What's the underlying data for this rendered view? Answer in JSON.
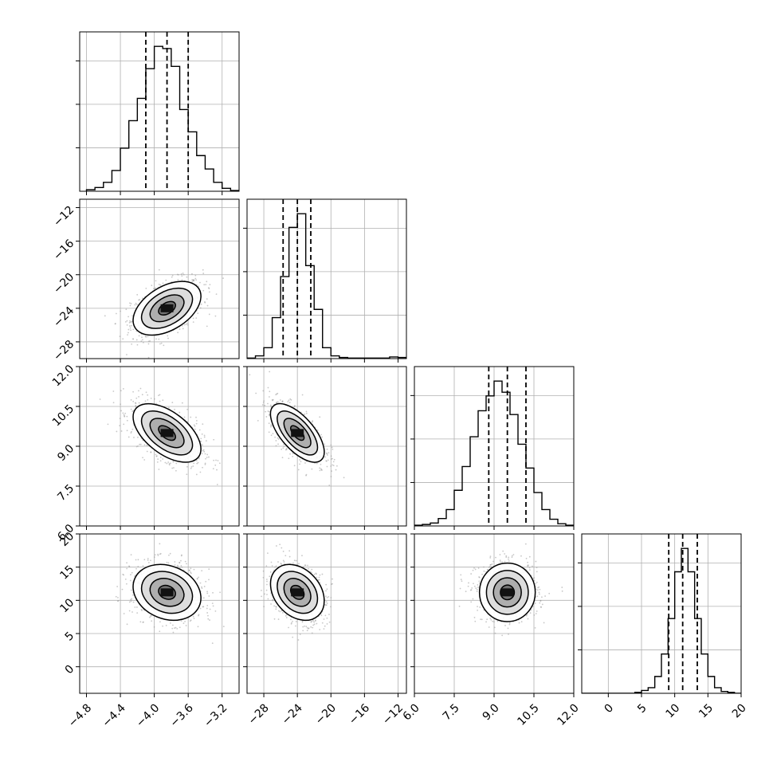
{
  "chart_data": {
    "type": "corner",
    "title": "",
    "parameters": [
      {
        "ticks": [
          -4.8,
          -4.4,
          -4.0,
          -3.6,
          -3.2
        ],
        "tick_labels": [
          "−4.8",
          "−4.4",
          "−4.0",
          "−3.6",
          "−3.2"
        ],
        "range": [
          -4.88,
          -3.0
        ]
      },
      {
        "ticks": [
          -28,
          -24,
          -20,
          -16,
          -12
        ],
        "tick_labels": [
          "−28",
          "−24",
          "−20",
          "−16",
          "−12"
        ],
        "range": [
          -30.0,
          -11.0
        ]
      },
      {
        "ticks": [
          6.0,
          7.5,
          9.0,
          10.5,
          12.0
        ],
        "tick_labels": [
          "6.0",
          "7.5",
          "9.0",
          "10.5",
          "12.0"
        ],
        "range": [
          6.0,
          12.0
        ]
      },
      {
        "ticks": [
          0,
          5,
          10,
          15,
          20
        ],
        "tick_labels": [
          "0",
          "5",
          "10",
          "15",
          "20"
        ],
        "range": [
          -4.0,
          20.0
        ]
      }
    ],
    "quantiles": [
      [
        -4.1,
        -3.85,
        -3.6
      ],
      [
        -25.7,
        -24.0,
        -22.4
      ],
      [
        8.8,
        9.5,
        10.2
      ],
      [
        9.1,
        11.2,
        13.4
      ]
    ],
    "marginal_histograms": [
      {
        "bin_edges": [
          -4.8,
          -4.7,
          -4.6,
          -4.5,
          -4.4,
          -4.3,
          -4.2,
          -4.1,
          -4.0,
          -3.9,
          -3.8,
          -3.7,
          -3.6,
          -3.5,
          -3.4,
          -3.3,
          -3.2,
          -3.1,
          -3.0
        ],
        "counts": [
          2,
          5,
          12,
          28,
          58,
          95,
          125,
          165,
          195,
          192,
          168,
          110,
          80,
          48,
          30,
          12,
          4,
          1
        ]
      },
      {
        "bin_edges": [
          -30,
          -29,
          -28,
          -27,
          -26,
          -25,
          -24,
          -23,
          -22,
          -21,
          -20,
          -19,
          -18,
          -17,
          -16,
          -15,
          -14,
          -13,
          -12,
          -11
        ],
        "counts": [
          1,
          5,
          20,
          75,
          150,
          240,
          265,
          170,
          90,
          20,
          5,
          2,
          1,
          1,
          1,
          1,
          1,
          3,
          2
        ]
      },
      {
        "bin_edges": [
          6.0,
          6.3,
          6.6,
          6.9,
          7.2,
          7.5,
          7.8,
          8.1,
          8.4,
          8.7,
          9.0,
          9.3,
          9.6,
          9.9,
          10.2,
          10.5,
          10.8,
          11.1,
          11.4,
          11.7,
          12.0
        ],
        "counts": [
          1,
          2,
          4,
          10,
          22,
          48,
          80,
          120,
          155,
          175,
          195,
          180,
          150,
          110,
          78,
          45,
          22,
          9,
          3,
          1
        ]
      },
      {
        "bin_edges": [
          -4,
          -3,
          -2,
          -1,
          0,
          1,
          2,
          3,
          4,
          5,
          6,
          7,
          8,
          9,
          10,
          11,
          12,
          13,
          14,
          15,
          16,
          17,
          18,
          19,
          20
        ],
        "counts": [
          0,
          0,
          0,
          0,
          0,
          0,
          0,
          0,
          1,
          3,
          6,
          18,
          42,
          80,
          130,
          155,
          130,
          80,
          42,
          18,
          6,
          2,
          1,
          0
        ]
      }
    ],
    "joint_distributions": [
      {
        "row": 1,
        "col": 0,
        "mean": [
          -3.85,
          -24.0
        ],
        "sd": [
          0.2,
          1.6
        ],
        "corr": 0.45
      },
      {
        "row": 2,
        "col": 0,
        "mean": [
          -3.85,
          9.5
        ],
        "sd": [
          0.2,
          0.55
        ],
        "corr": -0.55
      },
      {
        "row": 2,
        "col": 1,
        "mean": [
          -24.0,
          9.5
        ],
        "sd": [
          1.6,
          0.55
        ],
        "corr": -0.65
      },
      {
        "row": 3,
        "col": 0,
        "mean": [
          -3.85,
          11.2
        ],
        "sd": [
          0.2,
          2.1
        ],
        "corr": -0.2
      },
      {
        "row": 3,
        "col": 1,
        "mean": [
          -24.0,
          11.2
        ],
        "sd": [
          1.6,
          2.1
        ],
        "corr": -0.3
      },
      {
        "row": 3,
        "col": 2,
        "mean": [
          9.5,
          11.2
        ],
        "sd": [
          0.55,
          2.1
        ],
        "corr": 0.0
      }
    ],
    "contour_levels_sigma": [
      0.5,
      1.0,
      1.5,
      2.0
    ],
    "grid": true,
    "colors": {
      "line": "#000000",
      "scatter": "#9a9a9a",
      "grid": "#b0b0b0"
    }
  }
}
